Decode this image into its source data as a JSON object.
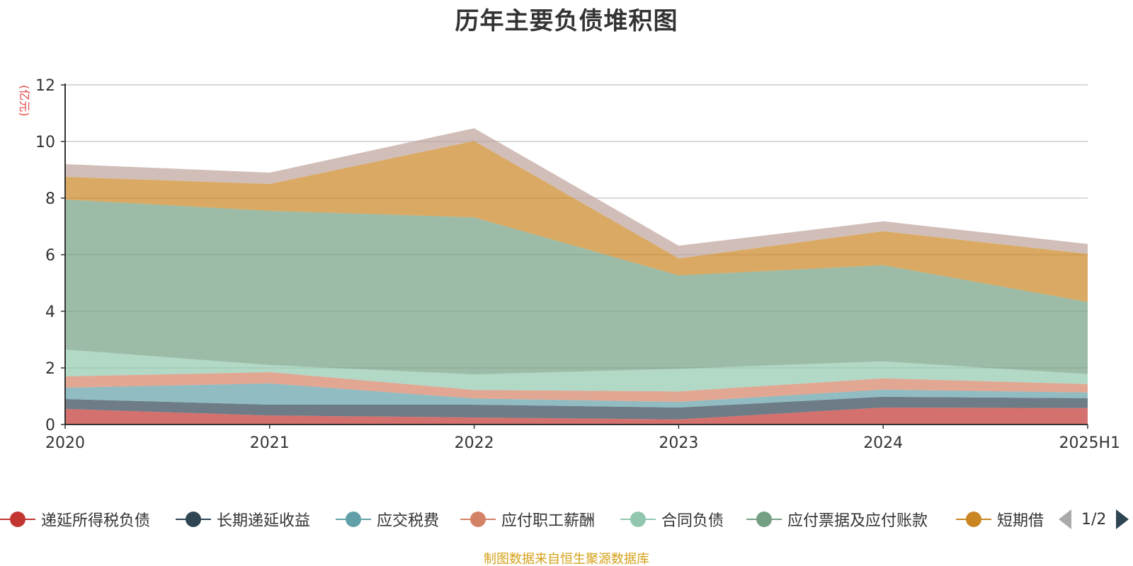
{
  "title": "历年主要负债堆积图",
  "unit_label": "(亿元)",
  "source_note": "制图数据来自恒生聚源数据库",
  "pager": {
    "text": "1/2"
  },
  "chart_data": {
    "type": "area",
    "stacked": true,
    "title": "历年主要负债堆积图",
    "ylabel": "(亿元)",
    "ylim": [
      0,
      12
    ],
    "yticks": [
      0,
      2,
      4,
      6,
      8,
      10,
      12
    ],
    "grid": true,
    "legend_position": "bottom",
    "categories": [
      "2020",
      "2021",
      "2022",
      "2023",
      "2024",
      "2025H1"
    ],
    "series": [
      {
        "name": "递延所得税负债",
        "color": "#c23531",
        "values": [
          0.55,
          0.32,
          0.25,
          0.18,
          0.6,
          0.58
        ]
      },
      {
        "name": "长期递延收益",
        "color": "#2f4554",
        "values": [
          0.35,
          0.38,
          0.45,
          0.42,
          0.38,
          0.35
        ]
      },
      {
        "name": "应交税费",
        "color": "#61a0a8",
        "values": [
          0.4,
          0.75,
          0.22,
          0.2,
          0.25,
          0.2
        ]
      },
      {
        "name": "应付职工薪酬",
        "color": "#d48265",
        "values": [
          0.4,
          0.4,
          0.3,
          0.37,
          0.4,
          0.3
        ]
      },
      {
        "name": "合同负债",
        "color": "#91c7ae",
        "values": [
          0.95,
          0.25,
          0.55,
          0.8,
          0.6,
          0.35
        ]
      },
      {
        "name": "应付票据及应付账款",
        "color": "#749f83",
        "values": [
          5.3,
          5.45,
          5.55,
          3.3,
          3.4,
          2.55
        ]
      },
      {
        "name": "短期借",
        "color": "#ca8622",
        "values": [
          0.8,
          0.95,
          2.7,
          0.6,
          1.2,
          1.7
        ]
      },
      {
        "name": "",
        "color": "#bda29a",
        "values": [
          0.45,
          0.4,
          0.45,
          0.45,
          0.35,
          0.35
        ]
      }
    ]
  }
}
